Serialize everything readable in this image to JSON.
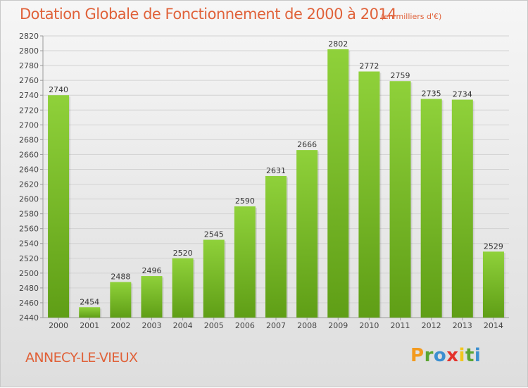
{
  "chart_data": {
    "type": "bar",
    "title": "Dotation Globale de Fonctionnement de 2000 à 2014",
    "subtitle": "(en milliers d'€)",
    "categories": [
      "2000",
      "2001",
      "2002",
      "2003",
      "2004",
      "2005",
      "2006",
      "2007",
      "2008",
      "2009",
      "2010",
      "2011",
      "2012",
      "2013",
      "2014"
    ],
    "values": [
      2740,
      2454,
      2488,
      2496,
      2520,
      2545,
      2590,
      2631,
      2666,
      2802,
      2772,
      2759,
      2735,
      2734,
      2529
    ],
    "ylim": [
      2440,
      2820
    ],
    "ystep": 20,
    "grid": true,
    "xlabel": "",
    "ylabel": "",
    "bar_color": "#7cbf2e"
  },
  "commune": "ANNECY-LE-VIEUX",
  "logo": {
    "letters": [
      "P",
      "r",
      "o",
      "x",
      "i",
      "t",
      "i"
    ],
    "colors": [
      "#f39a1e",
      "#5aa532",
      "#3c8fd0",
      "#e4322b",
      "#f3c61e",
      "#5aa532",
      "#3c8fd0"
    ]
  }
}
